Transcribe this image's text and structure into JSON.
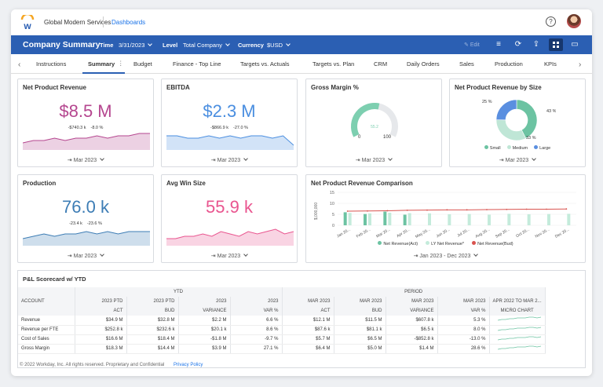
{
  "app": {
    "company": "Global Modern Services",
    "breadcrumb": "Dashboards",
    "logo_letter": "w"
  },
  "header": {
    "title": "Company Summary",
    "filters": [
      {
        "label": "Time",
        "value": "3/31/2023"
      },
      {
        "label": "Level",
        "value": "Total Company"
      },
      {
        "label": "Currency",
        "value": "$USD"
      }
    ],
    "edit_label": "Edit"
  },
  "tabs": [
    "Instructions",
    "Summary",
    "Budget",
    "Finance - Top Line",
    "Targets vs. Actuals",
    "Targets vs. Plan",
    "CRM",
    "Daily Orders",
    "Sales",
    "Production",
    "KPIs"
  ],
  "active_tab": "Summary",
  "cards": {
    "net_product_revenue": {
      "title": "Net Product Revenue",
      "value": "$8.5 M",
      "delta_abs": "-$740.3 k",
      "delta_pct": "-8.0 %",
      "period": "Mar 2023",
      "color": "#b5468f",
      "spark": [
        3,
        4,
        4,
        5,
        4,
        5,
        5,
        6,
        5,
        6,
        6,
        7,
        7
      ]
    },
    "ebitda": {
      "title": "EBITDA",
      "value": "$2.3 M",
      "delta_abs": "-$866.9 k",
      "delta_pct": "-27.0 %",
      "period": "Mar 2023",
      "color": "#4a8ee0",
      "spark": [
        6,
        6,
        5,
        5,
        6,
        5,
        6,
        5,
        6,
        6,
        5,
        6,
        2
      ]
    },
    "gross_margin": {
      "title": "Gross Margin %",
      "gauge_value": 55.2,
      "gauge_label": "55.2",
      "min_label": "0",
      "max_label": "100",
      "period": "Mar 2023",
      "color": "#7dcfb0"
    },
    "revenue_by_size": {
      "title": "Net Product Revenue by Size",
      "period": "Mar 2023",
      "slices": [
        {
          "name": "Small",
          "pct": 43,
          "label": "43 %",
          "color": "#6cc3a2"
        },
        {
          "name": "Medium",
          "pct": 33,
          "label": "33 %",
          "color": "#bfe6d6"
        },
        {
          "name": "Large",
          "pct": 25,
          "label": "25 %",
          "color": "#5a8fe0"
        }
      ]
    },
    "production": {
      "title": "Production",
      "value": "76.0 k",
      "delta_abs": "-23.4 k",
      "delta_pct": "-23.6 %",
      "period": "Mar 2023",
      "color": "#3d7db5",
      "spark": [
        3,
        4,
        5,
        4,
        5,
        5,
        6,
        5,
        6,
        5,
        6,
        6,
        6
      ]
    },
    "avg_win_size": {
      "title": "Avg Win Size",
      "value": "55.9 k",
      "delta_abs": "",
      "delta_pct": "",
      "period": "Mar 2023",
      "color": "#e9558f",
      "spark": [
        3,
        3,
        4,
        4,
        5,
        4,
        6,
        5,
        4,
        6,
        5,
        6,
        7,
        5,
        6
      ]
    },
    "comparison": {
      "title": "Net Product Revenue Comparison",
      "period": "Jan 2023 - Dec 2023",
      "ylabel": "$,000,000",
      "y_ticks": [
        "15",
        "10",
        "5",
        "0"
      ],
      "categories": [
        "Jan 20...",
        "Feb 20...",
        "Mar 20...",
        "Apr 20...",
        "May 20...",
        "Jun 20...",
        "Jul 20...",
        "Aug 20...",
        "Sep 20...",
        "Oct 20...",
        "Nov 20...",
        "Dec 20..."
      ],
      "series": [
        {
          "name": "Net Revenue(Act)",
          "color": "#6cc3a2",
          "values": [
            9.5,
            8.7,
            9.8,
            8.4,
            null,
            null,
            null,
            null,
            null,
            null,
            null,
            null
          ]
        },
        {
          "name": "LY Net Revenue*",
          "color": "#c4ebdb",
          "values": [
            9.2,
            9.0,
            9.3,
            9.1,
            9.0,
            8.6,
            8.7,
            8.4,
            8.8,
            8.6,
            8.7,
            8.8
          ]
        },
        {
          "name": "Net Revenue(Bud)",
          "color": "#d9534f",
          "values": [
            10.0,
            10.1,
            10.2,
            10.4,
            10.5,
            10.6,
            10.6,
            10.7,
            10.8,
            10.9,
            10.9,
            11.0
          ]
        }
      ]
    }
  },
  "pl": {
    "title": "P&L Scorecard w/ YTD",
    "group_headers": [
      "YTD",
      "PERIOD"
    ],
    "col_headers": [
      "ACCOUNT",
      "2023 PTD",
      "2023 PTD",
      "2023",
      "2023",
      "MAR 2023",
      "MAR 2023",
      "MAR 2023",
      "MAR 2023",
      "APR 2022 TO MAR 2..."
    ],
    "col_sub": [
      "",
      "ACT",
      "BUD",
      "VARIANCE",
      "VAR %",
      "ACT",
      "BUD",
      "VARIANCE",
      "VAR %",
      "MICRO CHART"
    ],
    "rows": [
      [
        "Revenue",
        "$34.9 M",
        "$32.8 M",
        "$2.2 M",
        "6.6 %",
        "$12.1 M",
        "$11.5 M",
        "$607.8 k",
        "5.3 %"
      ],
      [
        "Revenue per FTE",
        "$252.8 k",
        "$232.6 k",
        "$20.1 k",
        "8.6 %",
        "$87.6 k",
        "$81.1 k",
        "$6.5 k",
        "8.0 %"
      ],
      [
        "Cost of Sales",
        "$16.6 M",
        "$18.4 M",
        "-$1.8 M",
        "-9.7 %",
        "$5.7 M",
        "$6.5 M",
        "-$852.8 k",
        "-13.0 %"
      ],
      [
        "Gross Margin",
        "$18.3 M",
        "$14.4 M",
        "$3.9 M",
        "27.1 %",
        "$6.4 M",
        "$5.0 M",
        "$1.4 M",
        "28.6 %"
      ]
    ]
  },
  "footer": {
    "copyright": "© 2022 Workday, Inc. All rights reserved. Proprietary and Confidential",
    "privacy": "Privacy Policy"
  }
}
